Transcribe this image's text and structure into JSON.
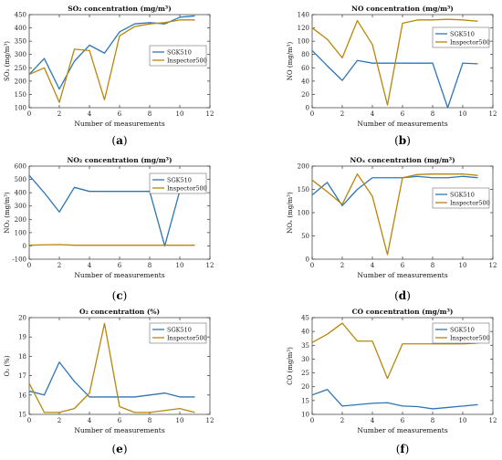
{
  "chart_data": [
    {
      "type": "line",
      "panel_label": "(a)",
      "title": "SO₂ concentration (mg/m³)",
      "xlabel": "Number of measurements",
      "ylabel": "SO₂ (mg/m³)",
      "xlim": [
        0,
        12
      ],
      "ylim": [
        100,
        450
      ],
      "xticks": [
        0,
        2,
        4,
        6,
        8,
        10,
        12
      ],
      "yticks": [
        100,
        150,
        200,
        250,
        300,
        350,
        400,
        450
      ],
      "legend_position": "right",
      "x": [
        0,
        1,
        2,
        3,
        4,
        5,
        6,
        7,
        8,
        9,
        10,
        11
      ],
      "series": [
        {
          "name": "SGK510",
          "color": "#2e75b6",
          "values": [
            225,
            285,
            170,
            275,
            335,
            305,
            385,
            415,
            420,
            415,
            440,
            445
          ]
        },
        {
          "name": "Inspector500",
          "color": "#b8860b",
          "values": [
            225,
            250,
            120,
            320,
            315,
            130,
            370,
            405,
            415,
            420,
            430,
            430
          ]
        }
      ]
    },
    {
      "type": "line",
      "panel_label": "(b)",
      "title": "NO concentration (mg/m³)",
      "xlabel": "Number of measurements",
      "ylabel": "NO (mg/m³)",
      "xlim": [
        0,
        12
      ],
      "ylim": [
        0,
        140
      ],
      "xticks": [
        0,
        2,
        4,
        6,
        8,
        10,
        12
      ],
      "yticks": [
        0,
        20,
        40,
        60,
        80,
        100,
        120,
        140
      ],
      "legend_position": "right",
      "x": [
        0,
        1,
        2,
        3,
        4,
        5,
        6,
        7,
        8,
        9,
        10,
        11
      ],
      "series": [
        {
          "name": "SGK510",
          "color": "#2e75b6",
          "values": [
            86,
            63,
            41,
            71,
            67,
            67,
            67,
            67,
            67,
            0,
            67,
            66
          ]
        },
        {
          "name": "Inspector500",
          "color": "#b8860b",
          "values": [
            120,
            103,
            75,
            131,
            95,
            4,
            127,
            132,
            132,
            133,
            132,
            130
          ]
        }
      ]
    },
    {
      "type": "line",
      "panel_label": "(c)",
      "title": "NO₂ concentration (mg/m³)",
      "xlabel": "Number of measurements",
      "ylabel": "NO₂ (mg/m³)",
      "xlim": [
        0,
        12
      ],
      "ylim": [
        -100,
        600
      ],
      "xticks": [
        0,
        2,
        4,
        6,
        8,
        10,
        12
      ],
      "yticks": [
        -100,
        0,
        100,
        200,
        300,
        400,
        500,
        600
      ],
      "legend_position": "top-right",
      "x": [
        0,
        1,
        2,
        3,
        4,
        5,
        6,
        7,
        8,
        9,
        10,
        11
      ],
      "series": [
        {
          "name": "SGK510",
          "color": "#2e75b6",
          "values": [
            530,
            400,
            255,
            440,
            410,
            410,
            410,
            410,
            410,
            0,
            415,
            410
          ]
        },
        {
          "name": "Inspector500",
          "color": "#b8860b",
          "values": [
            5,
            8,
            10,
            5,
            5,
            5,
            5,
            5,
            5,
            5,
            5,
            5
          ]
        }
      ]
    },
    {
      "type": "line",
      "panel_label": "(d)",
      "title": "NOₓ concentration (mg/m³)",
      "xlabel": "Number of measurements",
      "ylabel": "NOₓ (mg/m³)",
      "xlim": [
        0,
        12
      ],
      "ylim": [
        0,
        200
      ],
      "xticks": [
        0,
        2,
        4,
        6,
        8,
        10,
        12
      ],
      "yticks": [
        0,
        50,
        100,
        150,
        200
      ],
      "legend_position": "right",
      "x": [
        0,
        1,
        2,
        3,
        4,
        5,
        6,
        7,
        8,
        9,
        10,
        11
      ],
      "series": [
        {
          "name": "SGK510",
          "color": "#2e75b6",
          "values": [
            138,
            165,
            115,
            150,
            175,
            175,
            175,
            178,
            175,
            175,
            178,
            175
          ]
        },
        {
          "name": "Inspector500",
          "color": "#b8860b",
          "values": [
            170,
            145,
            118,
            183,
            135,
            10,
            175,
            182,
            183,
            183,
            183,
            180
          ]
        }
      ]
    },
    {
      "type": "line",
      "panel_label": "(e)",
      "title": "O₂ concentration (%)",
      "xlabel": "Number of measurements",
      "ylabel": "O₂ (%)",
      "xlim": [
        0,
        12
      ],
      "ylim": [
        15,
        20
      ],
      "xticks": [
        0,
        2,
        4,
        6,
        8,
        10,
        12
      ],
      "yticks": [
        15,
        16,
        17,
        18,
        19,
        20
      ],
      "legend_position": "top-right",
      "x": [
        0,
        1,
        2,
        3,
        4,
        5,
        6,
        7,
        8,
        9,
        10,
        11
      ],
      "series": [
        {
          "name": "SGK510",
          "color": "#2e75b6",
          "values": [
            16.2,
            16.0,
            17.7,
            16.7,
            15.9,
            15.9,
            15.9,
            15.9,
            16.0,
            16.1,
            15.9,
            15.9
          ]
        },
        {
          "name": "Inspector500",
          "color": "#b8860b",
          "values": [
            16.6,
            15.1,
            15.1,
            15.3,
            16.1,
            19.7,
            15.4,
            15.1,
            15.1,
            15.2,
            15.3,
            15.1
          ]
        }
      ]
    },
    {
      "type": "line",
      "panel_label": "(f)",
      "title": "CO concentration (mg/m³)",
      "xlabel": "Number of measurements",
      "ylabel": "CO (mg/m³)",
      "xlim": [
        0,
        12
      ],
      "ylim": [
        10,
        45
      ],
      "xticks": [
        0,
        2,
        4,
        6,
        8,
        10,
        12
      ],
      "yticks": [
        10,
        15,
        20,
        25,
        30,
        35,
        40,
        45
      ],
      "legend_position": "top-right",
      "x": [
        0,
        1,
        2,
        3,
        4,
        5,
        6,
        7,
        8,
        9,
        10,
        11
      ],
      "series": [
        {
          "name": "SGK510",
          "color": "#2e75b6",
          "values": [
            17,
            19,
            13,
            13.5,
            14,
            14.2,
            13,
            12.8,
            12,
            12.5,
            13,
            13.5
          ]
        },
        {
          "name": "Inspector500",
          "color": "#b8860b",
          "values": [
            36,
            39,
            43,
            36.5,
            36.5,
            23,
            35.5,
            35.5,
            35.5,
            35.5,
            35.5,
            35.8
          ]
        }
      ]
    }
  ]
}
